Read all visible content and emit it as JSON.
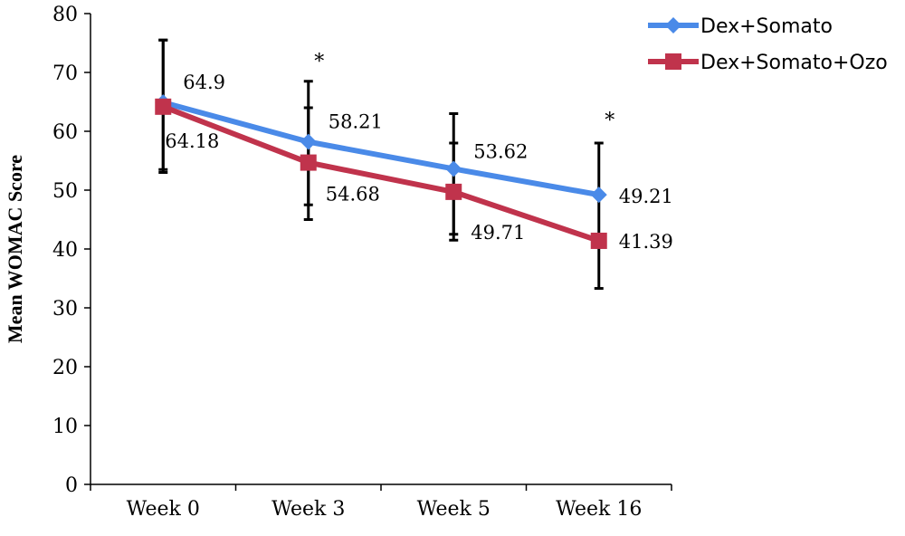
{
  "colors": {
    "blue": "#4a8ae8",
    "red": "#c0334c",
    "axis": "#000000"
  },
  "chart_data": {
    "type": "line",
    "title": "",
    "xlabel": "",
    "ylabel": "Mean WOMAC Score",
    "categories": [
      "Week 0",
      "Week 3",
      "Week 5",
      "Week 16"
    ],
    "ylim": [
      0,
      80
    ],
    "yticks": [
      "0",
      "10",
      "20",
      "30",
      "40",
      "50",
      "60",
      "70",
      "80"
    ],
    "grid": false,
    "legend_position": "top-right",
    "series": [
      {
        "name": "Dex+Somato",
        "marker": "diamond",
        "values": [
          64.9,
          58.21,
          53.62,
          49.21
        ],
        "labels": [
          "64.9",
          "58.21",
          "53.62",
          "49.21"
        ],
        "error_bars": [
          [
            53.5,
            75.5
          ],
          [
            47.5,
            64
          ],
          [
            42.5,
            63
          ],
          [
            null,
            58
          ]
        ]
      },
      {
        "name": "Dex+Somato+Ozo",
        "marker": "square",
        "values": [
          64.18,
          54.68,
          49.71,
          41.39
        ],
        "labels": [
          "64.18",
          "54.68",
          "49.71",
          "41.39"
        ],
        "error_bars": [
          [
            53,
            75.5
          ],
          [
            45,
            68.5
          ],
          [
            41.5,
            58
          ],
          [
            33.3,
            49.5
          ]
        ]
      }
    ],
    "annotations": [
      {
        "text": "*",
        "category": "Week 3",
        "y": 72
      },
      {
        "text": "*",
        "category": "Week 16",
        "y": 62
      }
    ]
  }
}
